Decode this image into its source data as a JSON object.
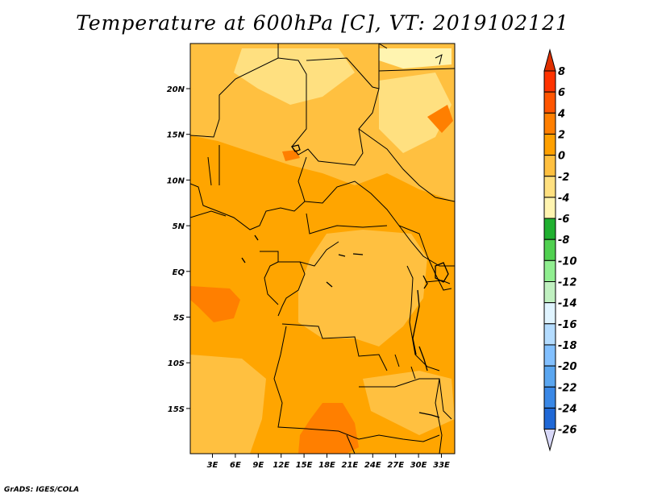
{
  "title": "Temperature at 600hPa [C], VT: 2019102121",
  "credit": "GrADS: IGES/COLA",
  "map": {
    "lon_ticks": [
      "3E",
      "6E",
      "9E",
      "12E",
      "15E",
      "18E",
      "21E",
      "24E",
      "27E",
      "30E",
      "33E"
    ],
    "lat_ticks": [
      "20N",
      "15N",
      "10N",
      "5N",
      "EQ",
      "5S",
      "10S",
      "15S"
    ]
  },
  "colorbar": {
    "labels": [
      "8",
      "6",
      "4",
      "2",
      "0",
      "-2",
      "-4",
      "-6",
      "-8",
      "-10",
      "-12",
      "-14",
      "-16",
      "-18",
      "-20",
      "-22",
      "-24",
      "-26"
    ],
    "colors": [
      "#ff3300",
      "#ff5500",
      "#ff7f00",
      "#ffa000",
      "#ffc040",
      "#ffe080",
      "#fff4b0",
      "#20b030",
      "#50d050",
      "#90ee90",
      "#c0f0c0",
      "#e0f4ff",
      "#b4dcff",
      "#82c0ff",
      "#5aa6f0",
      "#3a88e6",
      "#1f68d6",
      "#1048b8",
      "#0a2a94",
      "#101060"
    ],
    "top_color": "#e03000",
    "bottom_color": "#d8d8f8"
  }
}
